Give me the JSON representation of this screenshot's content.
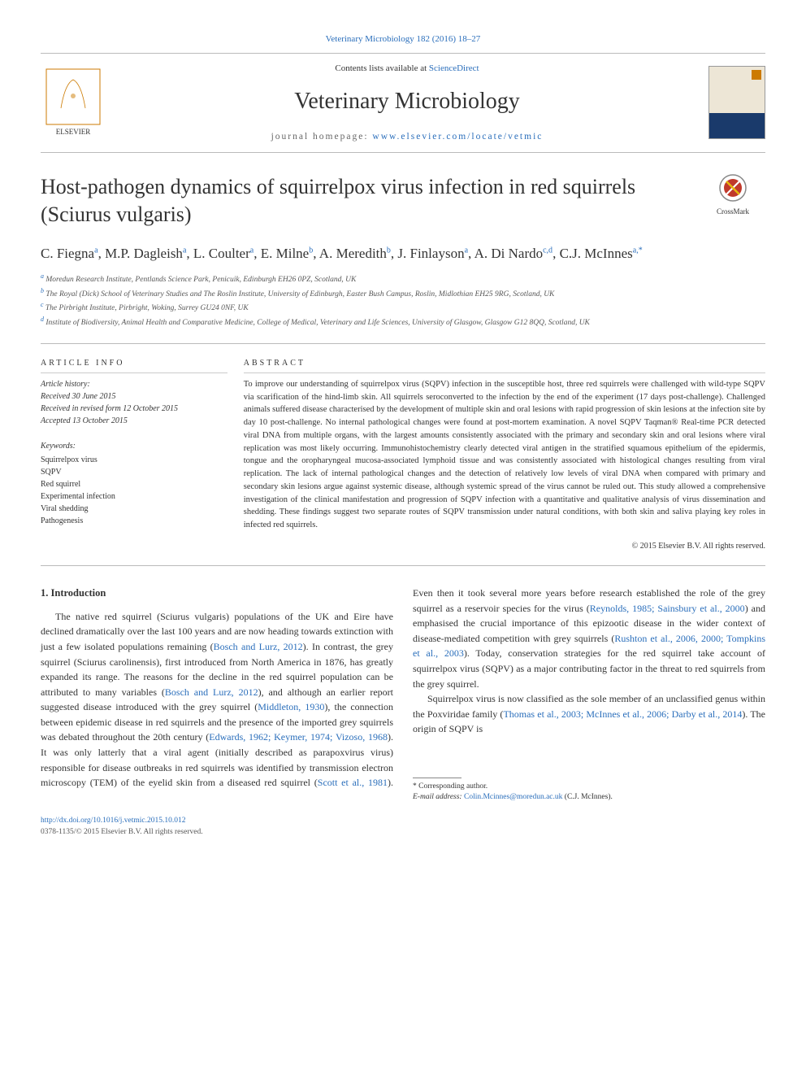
{
  "top_link": "Veterinary Microbiology 182 (2016) 18–27",
  "header": {
    "contents_prefix": "Contents lists available at ",
    "contents_link": "ScienceDirect",
    "journal_name": "Veterinary Microbiology",
    "homepage_prefix": "journal homepage: ",
    "homepage_link": "www.elsevier.com/locate/vetmic"
  },
  "article": {
    "title": "Host-pathogen dynamics of squirrelpox virus infection in red squirrels (Sciurus vulgaris)",
    "crossmark_label": "CrossMark"
  },
  "authors": [
    {
      "name": "C. Fiegna",
      "aff": "a"
    },
    {
      "name": "M.P. Dagleish",
      "aff": "a"
    },
    {
      "name": "L. Coulter",
      "aff": "a"
    },
    {
      "name": "E. Milne",
      "aff": "b"
    },
    {
      "name": "A. Meredith",
      "aff": "b"
    },
    {
      "name": "J. Finlayson",
      "aff": "a"
    },
    {
      "name": "A. Di Nardo",
      "aff": "c,d"
    },
    {
      "name": "C.J. McInnes",
      "aff": "a,*"
    }
  ],
  "affiliations": [
    {
      "sup": "a",
      "text": "Moredun Research Institute, Pentlands Science Park, Penicuik, Edinburgh EH26 0PZ, Scotland, UK"
    },
    {
      "sup": "b",
      "text": "The Royal (Dick) School of Veterinary Studies and The Roslin Institute, University of Edinburgh, Easter Bush Campus, Roslin, Midlothian EH25 9RG, Scotland, UK"
    },
    {
      "sup": "c",
      "text": "The Pirbright Institute, Pirbright, Woking, Surrey GU24 0NF, UK"
    },
    {
      "sup": "d",
      "text": "Institute of Biodiversity, Animal Health and Comparative Medicine, College of Medical, Veterinary and Life Sciences, University of Glasgow, Glasgow G12 8QQ, Scotland, UK"
    }
  ],
  "info": {
    "heading": "ARTICLE INFO",
    "history_label": "Article history:",
    "received": "Received 30 June 2015",
    "revised": "Received in revised form 12 October 2015",
    "accepted": "Accepted 13 October 2015",
    "keywords_label": "Keywords:",
    "keywords": [
      "Squirrelpox virus",
      "SQPV",
      "Red squirrel",
      "Experimental infection",
      "Viral shedding",
      "Pathogenesis"
    ]
  },
  "abstract": {
    "heading": "ABSTRACT",
    "text": "To improve our understanding of squirrelpox virus (SQPV) infection in the susceptible host, three red squirrels were challenged with wild-type SQPV via scarification of the hind-limb skin. All squirrels seroconverted to the infection by the end of the experiment (17 days post-challenge). Challenged animals suffered disease characterised by the development of multiple skin and oral lesions with rapid progression of skin lesions at the infection site by day 10 post-challenge. No internal pathological changes were found at post-mortem examination. A novel SQPV Taqman® Real-time PCR detected viral DNA from multiple organs, with the largest amounts consistently associated with the primary and secondary skin and oral lesions where viral replication was most likely occurring. Immunohistochemistry clearly detected viral antigen in the stratified squamous epithelium of the epidermis, tongue and the oropharyngeal mucosa-associated lymphoid tissue and was consistently associated with histological changes resulting from viral replication. The lack of internal pathological changes and the detection of relatively low levels of viral DNA when compared with primary and secondary skin lesions argue against systemic disease, although systemic spread of the virus cannot be ruled out. This study allowed a comprehensive investigation of the clinical manifestation and progression of SQPV infection with a quantitative and qualitative analysis of virus dissemination and shedding. These findings suggest two separate routes of SQPV transmission under natural conditions, with both skin and saliva playing key roles in infected red squirrels.",
    "copyright": "© 2015 Elsevier B.V. All rights reserved."
  },
  "body": {
    "section_heading": "1. Introduction",
    "para1_pre": "The native red squirrel (Sciurus vulgaris) populations of the UK and Eire have declined dramatically over the last 100 years and are now heading towards extinction with just a few isolated populations remaining (",
    "ref1": "Bosch and Lurz, 2012",
    "para1_mid1": "). In contrast, the grey squirrel (Sciurus carolinensis), first introduced from North America in 1876, has greatly expanded its range. The reasons for the decline in the red squirrel population can be attributed to many variables (",
    "ref2": "Bosch and Lurz, 2012",
    "para1_mid2": "), and although an earlier report suggested disease introduced with the grey squirrel (",
    "ref3": "Middleton, 1930",
    "para1_mid3": "), the connection between epidemic disease in red squirrels and the presence of the imported grey squirrels was debated throughout the 20th century (",
    "ref4": "Edwards, 1962; Keymer, 1974; Vizoso, 1968",
    "para1_mid4": "). It was only latterly that a viral agent (initially described as parapoxvirus virus) responsible for disease outbreaks in red squirrels was identified by transmission electron microscopy (TEM) of the eyelid skin from a diseased red squirrel (",
    "ref5": "Scott et al., 1981",
    "para1_mid5": "). Even then it took several more years before research established the role of the grey squirrel as a reservoir species for the virus (",
    "ref6": "Reynolds, 1985; Sainsbury et al., 2000",
    "para1_mid6": ") and emphasised the crucial importance of this epizootic disease in the wider context of disease-mediated competition with grey squirrels (",
    "ref7": "Rushton et al., 2006, 2000; Tompkins et al., 2003",
    "para1_mid7": "). Today, conservation strategies for the red squirrel take account of squirrelpox virus (SQPV) as a major contributing factor in the threat to red squirrels from the grey squirrel.",
    "para2_pre": "Squirrelpox virus is now classified as the sole member of an unclassified genus within the Poxviridae family (",
    "ref8": "Thomas et al., 2003; McInnes et al., 2006; Darby et al., 2014",
    "para2_post": "). The origin of SQPV is"
  },
  "footnote": {
    "corr_label": "* Corresponding author.",
    "email_label": "E-mail address: ",
    "email": "Colin.Mcinnes@moredun.ac.uk",
    "email_attr": " (C.J. McInnes)."
  },
  "doi": {
    "link": "http://dx.doi.org/10.1016/j.vetmic.2015.10.012",
    "issn": "0378-1135/© 2015 Elsevier B.V. All rights reserved."
  },
  "colors": {
    "link": "#2a6ebb",
    "text": "#333333",
    "border": "#bbbbbb"
  }
}
